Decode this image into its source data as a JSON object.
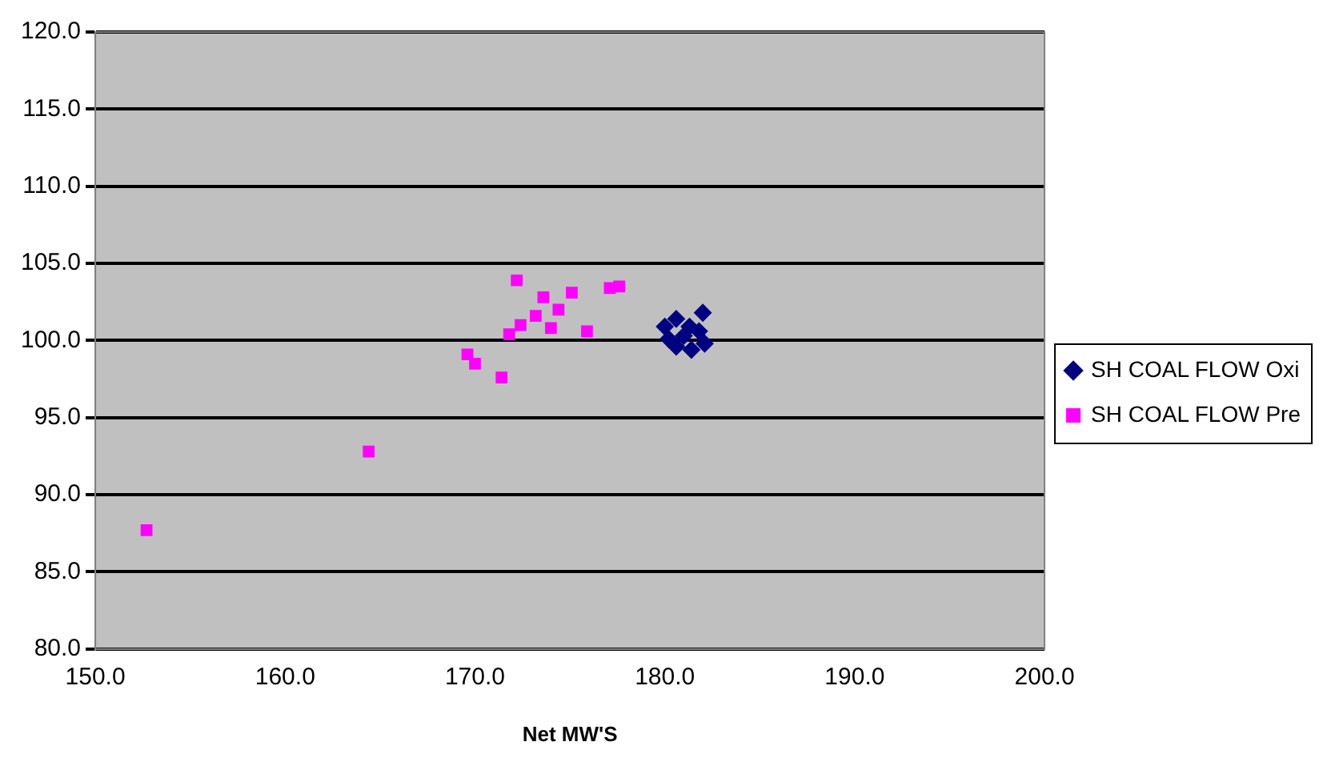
{
  "chart_data": {
    "type": "scatter",
    "xlabel": "Net MW'S",
    "xlim": [
      150,
      200
    ],
    "xticks": [
      {
        "value": 150,
        "label": "150.0"
      },
      {
        "value": 160,
        "label": "160.0"
      },
      {
        "value": 170,
        "label": "170.0"
      },
      {
        "value": 180,
        "label": "180.0"
      },
      {
        "value": 190,
        "label": "190.0"
      },
      {
        "value": 200,
        "label": "200.0"
      }
    ],
    "ylim": [
      80,
      120
    ],
    "yticks": [
      {
        "value": 80,
        "label": "80.0"
      },
      {
        "value": 85,
        "label": "85.0"
      },
      {
        "value": 90,
        "label": "90.0"
      },
      {
        "value": 95,
        "label": "95.0"
      },
      {
        "value": 100,
        "label": "100.0"
      },
      {
        "value": 105,
        "label": "105.0"
      },
      {
        "value": 110,
        "label": "110.0"
      },
      {
        "value": 115,
        "label": "115.0"
      },
      {
        "value": 120,
        "label": "120.0"
      }
    ],
    "grid": "y",
    "legend": "right",
    "series": [
      {
        "name": "SH COAL FLOW Oxi",
        "color": "#000080",
        "marker": "diamond",
        "x": [
          180.0,
          180.6,
          181.3,
          182.0,
          180.2,
          181.0,
          181.8,
          180.6,
          181.4,
          182.1
        ],
        "values": [
          100.9,
          101.4,
          100.9,
          101.8,
          100.1,
          100.3,
          100.6,
          99.6,
          99.4,
          99.8
        ]
      },
      {
        "name": "SH COAL FLOW Pre",
        "color": "#ff00ff",
        "marker": "square",
        "x": [
          152.7,
          164.4,
          169.6,
          170.0,
          171.4,
          171.8,
          172.2,
          172.4,
          173.2,
          173.6,
          174.0,
          174.4,
          175.1,
          175.9,
          177.1,
          177.6
        ],
        "values": [
          87.7,
          92.8,
          99.1,
          98.5,
          97.6,
          100.4,
          103.9,
          101.0,
          101.6,
          102.8,
          100.8,
          102.0,
          103.1,
          100.6,
          103.4,
          103.5
        ]
      }
    ]
  }
}
